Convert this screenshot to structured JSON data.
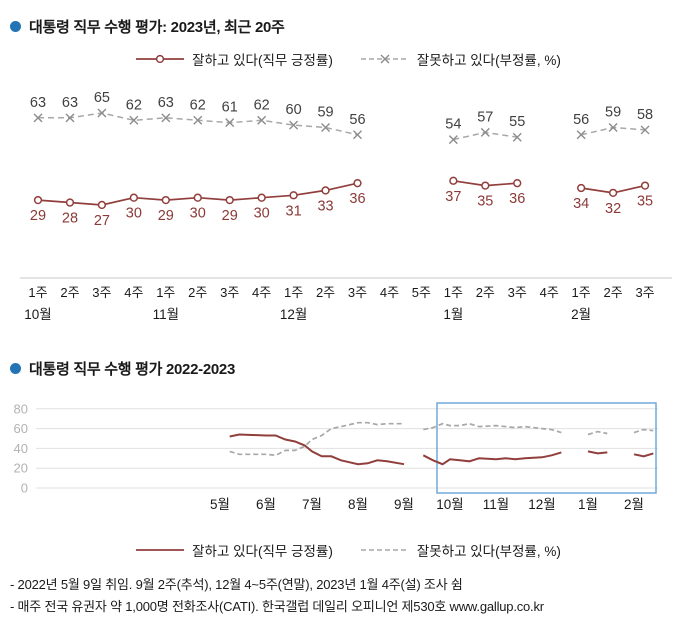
{
  "section1": {
    "title": "대통령 직무 수행 평가: 2023년, 최근 20주"
  },
  "section2": {
    "title": "대통령 직무 수행 평가 2022-2023"
  },
  "legend": {
    "positive_label": "잘하고 있다(직무 긍정률)",
    "negative_label": "잘못하고 있다(부정률, %)"
  },
  "footnotes": [
    "- 2022년 5월 9일 취임. 9월 2주(추석), 12월 4~5주(연말), 2023년 1월 4주(설) 조사 쉼",
    "- 매주 전국 유권자 약 1,000명 전화조사(CATI). 한국갤럽 데일리 오피니언 제530호 www.gallup.co.kr"
  ],
  "colors": {
    "positive": "#913f3c",
    "positive_label": "#8a3a38",
    "negative": "#a8a8a8",
    "negative_marker": "#8c8c8c",
    "negative_label": "#404040",
    "axis": "#c9c9c9",
    "grid": "#e0e0e0",
    "tick": "#b3b3b3",
    "highlight": "#68a3d8",
    "bullet": "#2374b5"
  },
  "chart_data": [
    {
      "type": "line",
      "title": "대통령 직무 수행 평가: 2023년, 최근 20주",
      "x_tick_labels": [
        "1주",
        "2주",
        "3주",
        "4주",
        "1주",
        "2주",
        "3주",
        "4주",
        "1주",
        "2주",
        "3주",
        "4주",
        "5주",
        "1주",
        "2주",
        "3주",
        "4주",
        "1주",
        "2주",
        "3주"
      ],
      "month_ticks": [
        {
          "index": 0,
          "label": "10월"
        },
        {
          "index": 4,
          "label": "11월"
        },
        {
          "index": 8,
          "label": "12월"
        },
        {
          "index": 13,
          "label": "1월"
        },
        {
          "index": 17,
          "label": "2월"
        }
      ],
      "data_labels": true,
      "series": [
        {
          "name": "잘하고 있다(직무 긍정률)",
          "style": "solid-circle",
          "values": [
            29,
            28,
            27,
            30,
            29,
            30,
            29,
            30,
            31,
            33,
            36,
            null,
            null,
            37,
            35,
            36,
            null,
            34,
            32,
            35
          ]
        },
        {
          "name": "잘못하고 있다(부정률, %)",
          "style": "dashed-x",
          "values": [
            63,
            63,
            65,
            62,
            63,
            62,
            61,
            62,
            60,
            59,
            56,
            null,
            null,
            54,
            57,
            55,
            null,
            56,
            59,
            58
          ]
        }
      ]
    },
    {
      "type": "line",
      "title": "대통령 직무 수행 평가 2022-2023",
      "x_tick_labels": [
        "5월",
        "6월",
        "7월",
        "8월",
        "9월",
        "10월",
        "11월",
        "12월",
        "1월",
        "2월"
      ],
      "ylim": [
        0,
        80
      ],
      "yticks": [
        0,
        20,
        40,
        60,
        80
      ],
      "grid": true,
      "highlight_range_months": [
        "10월",
        "2월"
      ],
      "series": [
        {
          "name": "잘하고 있다(직무 긍정률)",
          "style": "solid",
          "points": [
            [
              0,
              2,
              52
            ],
            [
              0,
              3,
              54
            ],
            [
              1,
              1,
              53
            ],
            [
              1,
              2,
              53
            ],
            [
              1,
              3,
              49
            ],
            [
              1,
              4,
              47
            ],
            [
              1,
              5,
              43
            ],
            [
              2,
              1,
              37
            ],
            [
              2,
              2,
              32
            ],
            [
              2,
              3,
              32
            ],
            [
              2,
              4,
              28
            ],
            [
              3,
              1,
              24
            ],
            [
              3,
              2,
              25
            ],
            [
              3,
              3,
              28
            ],
            [
              3,
              4,
              27
            ],
            [
              4,
              1,
              24
            ],
            null,
            [
              4,
              3,
              33
            ],
            [
              4,
              4,
              28
            ],
            [
              4,
              5,
              24
            ],
            [
              5,
              1,
              29
            ],
            [
              5,
              2,
              28
            ],
            [
              5,
              3,
              27
            ],
            [
              5,
              4,
              30
            ],
            [
              6,
              1,
              29
            ],
            [
              6,
              2,
              30
            ],
            [
              6,
              3,
              29
            ],
            [
              6,
              4,
              30
            ],
            [
              7,
              1,
              31
            ],
            [
              7,
              2,
              33
            ],
            [
              7,
              3,
              36
            ],
            null,
            [
              8,
              1,
              37
            ],
            [
              8,
              2,
              35
            ],
            [
              8,
              3,
              36
            ],
            null,
            [
              9,
              1,
              34
            ],
            [
              9,
              2,
              32
            ],
            [
              9,
              3,
              35
            ]
          ]
        },
        {
          "name": "잘못하고 있다(부정률, %)",
          "style": "dashed",
          "points": [
            [
              0,
              2,
              37
            ],
            [
              0,
              3,
              34
            ],
            [
              1,
              1,
              34
            ],
            [
              1,
              2,
              33
            ],
            [
              1,
              3,
              38
            ],
            [
              1,
              4,
              38
            ],
            [
              1,
              5,
              42
            ],
            [
              2,
              1,
              49
            ],
            [
              2,
              2,
              53
            ],
            [
              2,
              3,
              60
            ],
            [
              2,
              4,
              62
            ],
            [
              3,
              1,
              66
            ],
            [
              3,
              2,
              66
            ],
            [
              3,
              3,
              64
            ],
            [
              3,
              4,
              65
            ],
            [
              4,
              1,
              65
            ],
            null,
            [
              4,
              3,
              59
            ],
            [
              4,
              4,
              61
            ],
            [
              4,
              5,
              65
            ],
            [
              5,
              1,
              63
            ],
            [
              5,
              2,
              63
            ],
            [
              5,
              3,
              65
            ],
            [
              5,
              4,
              62
            ],
            [
              6,
              1,
              63
            ],
            [
              6,
              2,
              62
            ],
            [
              6,
              3,
              61
            ],
            [
              6,
              4,
              62
            ],
            [
              7,
              1,
              60
            ],
            [
              7,
              2,
              59
            ],
            [
              7,
              3,
              56
            ],
            null,
            [
              8,
              1,
              54
            ],
            [
              8,
              2,
              57
            ],
            [
              8,
              3,
              55
            ],
            null,
            [
              9,
              1,
              56
            ],
            [
              9,
              2,
              59
            ],
            [
              9,
              3,
              58
            ]
          ]
        }
      ]
    }
  ]
}
